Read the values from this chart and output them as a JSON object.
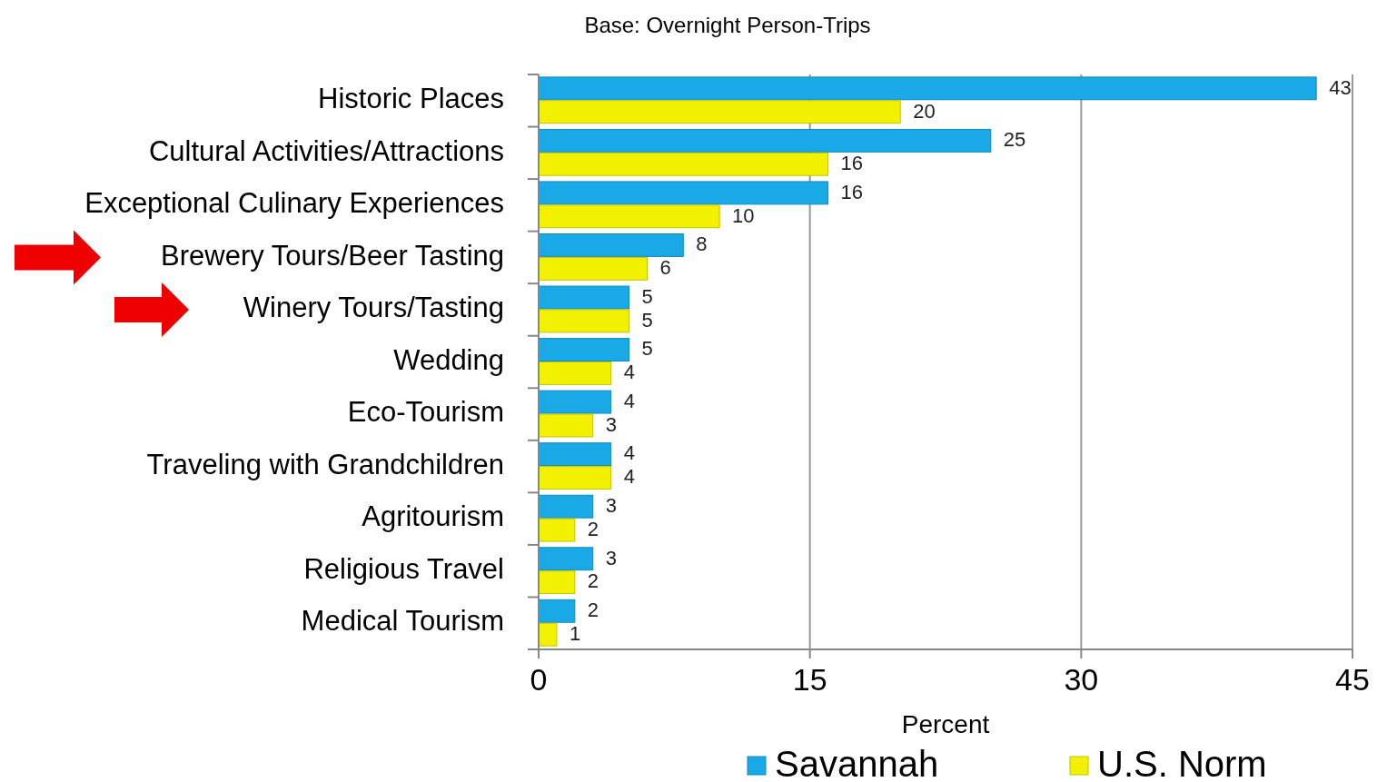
{
  "chart_data": {
    "type": "bar",
    "orientation": "horizontal",
    "title": "Base: Overnight Person-Trips",
    "xlabel": "Percent",
    "categories": [
      "Historic Places",
      "Cultural Activities/Attractions",
      "Exceptional Culinary Experiences",
      "Brewery Tours/Beer Tasting",
      "Winery Tours/Tasting",
      "Wedding",
      "Eco-Tourism",
      "Traveling with Grandchildren",
      "Agritourism",
      "Religious Travel",
      "Medical Tourism"
    ],
    "series": [
      {
        "name": "Savannah",
        "color": "#19a9e6",
        "values": [
          43,
          25,
          16,
          8,
          5,
          5,
          4,
          4,
          3,
          3,
          2
        ]
      },
      {
        "name": "U.S. Norm",
        "color": "#f2f200",
        "values": [
          20,
          16,
          10,
          6,
          5,
          4,
          3,
          4,
          2,
          2,
          1
        ]
      }
    ],
    "xlim": [
      0,
      45
    ],
    "xticks": [
      0,
      15,
      30,
      45
    ],
    "grid": "x",
    "legend": "bottom",
    "data_labels": true
  }
}
